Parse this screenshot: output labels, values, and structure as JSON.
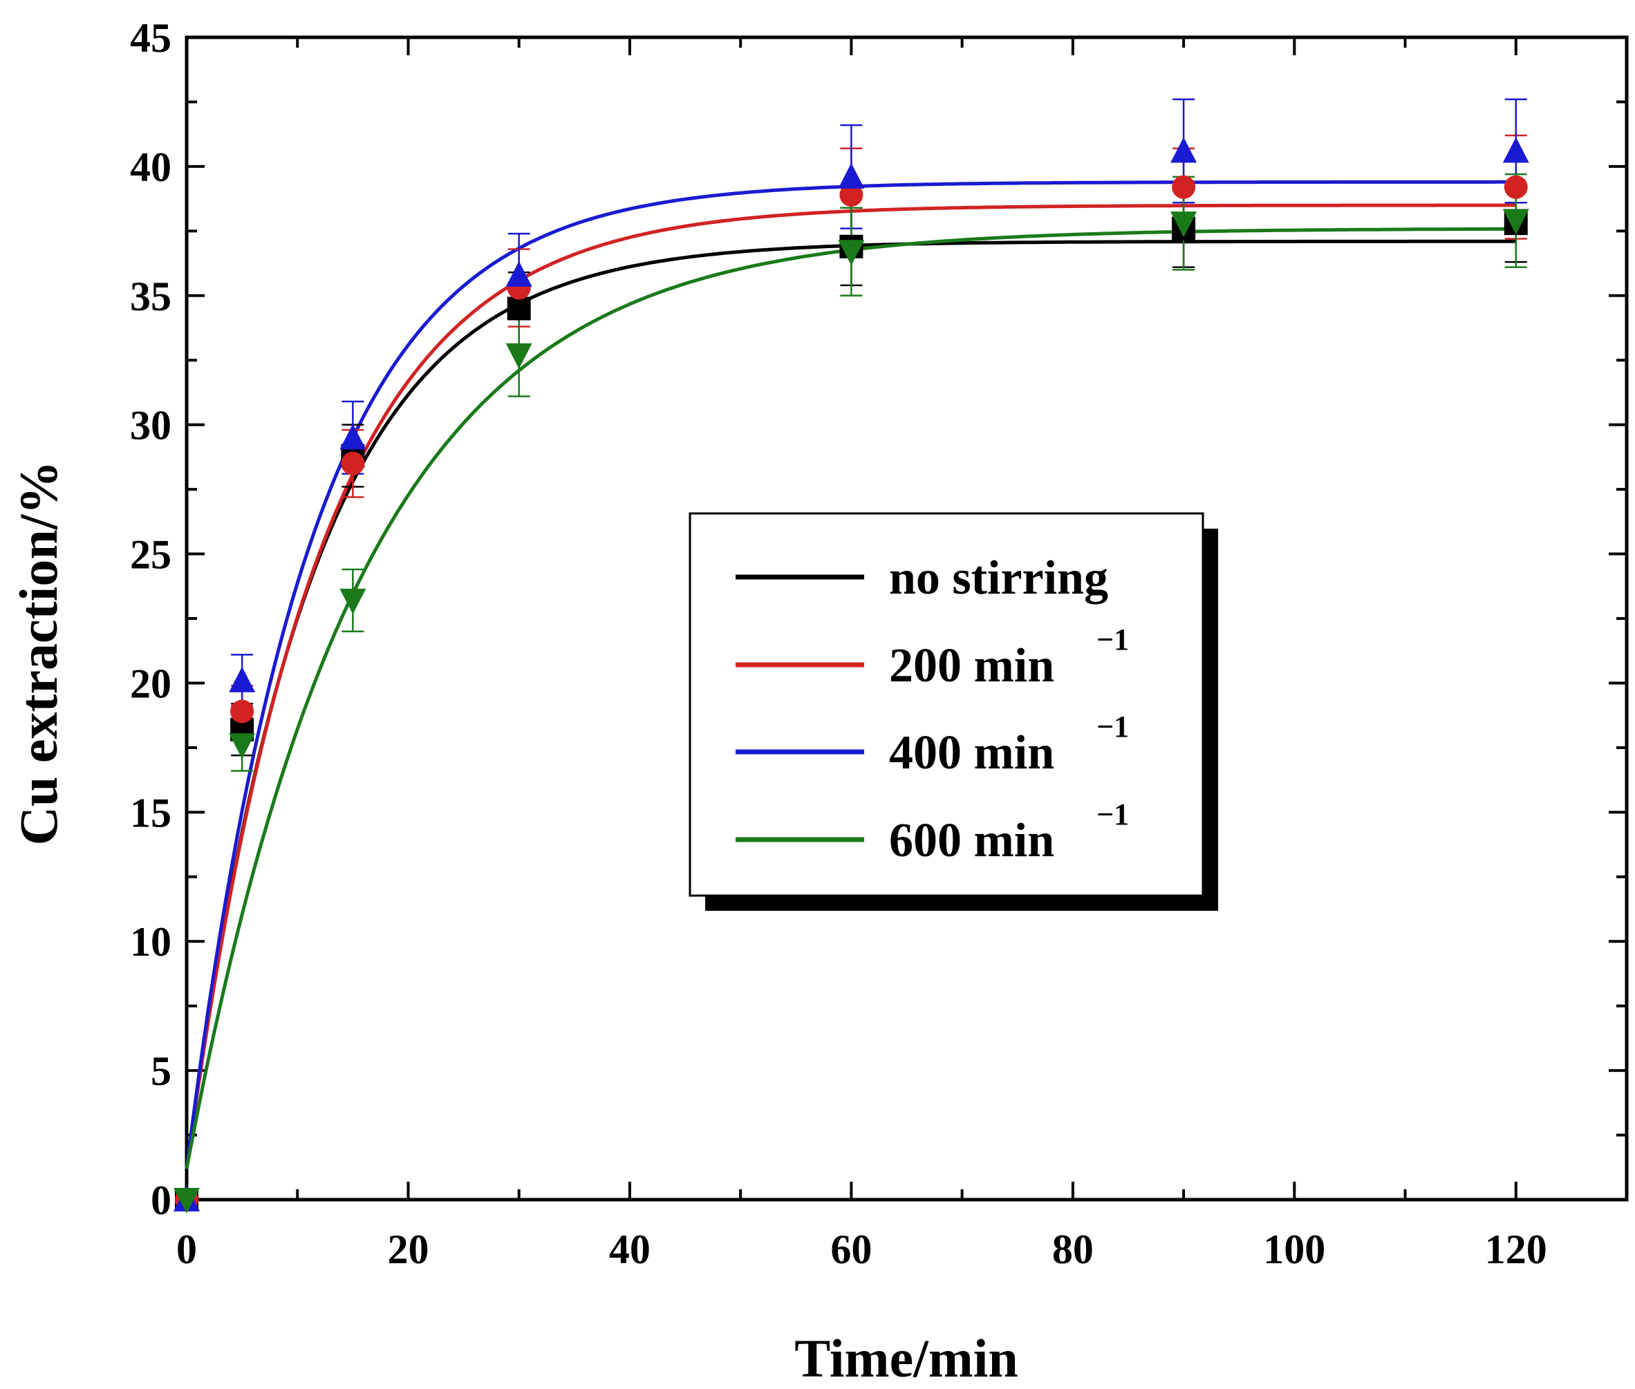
{
  "chart_data": {
    "type": "line",
    "xlabel": "Time/min",
    "ylabel": "Cu extraction/%",
    "xlim": [
      0,
      130
    ],
    "ylim": [
      0,
      45
    ],
    "x_ticks": [
      0,
      20,
      40,
      60,
      80,
      100,
      120
    ],
    "y_ticks": [
      0,
      5,
      10,
      15,
      20,
      25,
      30,
      35,
      40,
      45
    ],
    "x_tick_labels": [
      "0",
      "20",
      "40",
      "60",
      "80",
      "100",
      "120"
    ],
    "y_tick_labels": [
      "0",
      "5",
      "10",
      "15",
      "20",
      "25",
      "30",
      "35",
      "40",
      "45"
    ],
    "legend_position": "center-right",
    "series": [
      {
        "name": "no stirring",
        "legend_text": "no stirring",
        "legend_sup": "",
        "color": "#000000",
        "marker": "square",
        "x": [
          0,
          5,
          15,
          30,
          60,
          90,
          120
        ],
        "y": [
          0,
          18.2,
          28.8,
          34.5,
          36.9,
          37.6,
          37.8
        ],
        "err": [
          0,
          1.0,
          1.2,
          1.4,
          1.5,
          1.5,
          1.5
        ],
        "fit": {
          "a": 37.1,
          "k": 0.09
        }
      },
      {
        "name": "200 min-1",
        "legend_text": "200 min",
        "legend_sup": "−1",
        "color": "#d22222",
        "marker": "circle",
        "x": [
          0,
          5,
          15,
          30,
          60,
          90,
          120
        ],
        "y": [
          0,
          18.9,
          28.5,
          35.3,
          38.9,
          39.2,
          39.2
        ],
        "err": [
          0,
          1.0,
          1.3,
          1.5,
          1.8,
          1.5,
          2.0
        ],
        "fit": {
          "a": 38.5,
          "k": 0.085
        }
      },
      {
        "name": "400 min-1",
        "legend_text": "400 min",
        "legend_sup": "−1",
        "color": "#1a1ad2",
        "marker": "triangle-up",
        "x": [
          0,
          5,
          15,
          30,
          60,
          90,
          120
        ],
        "y": [
          0,
          20.1,
          29.5,
          35.8,
          39.6,
          40.6,
          40.6
        ],
        "err": [
          0,
          1.0,
          1.4,
          1.6,
          2.0,
          2.0,
          2.0
        ],
        "fit": {
          "a": 39.4,
          "k": 0.09
        }
      },
      {
        "name": "600 min-1",
        "legend_text": "600 min",
        "legend_sup": "−1",
        "color": "#1a7a1a",
        "marker": "triangle-down",
        "x": [
          0,
          5,
          15,
          30,
          60,
          90,
          120
        ],
        "y": [
          0,
          17.6,
          23.2,
          32.7,
          36.7,
          37.8,
          37.9
        ],
        "err": [
          0,
          1.0,
          1.2,
          1.6,
          1.7,
          1.8,
          1.8
        ],
        "fit": {
          "a": 37.6,
          "k": 0.063
        }
      }
    ]
  }
}
